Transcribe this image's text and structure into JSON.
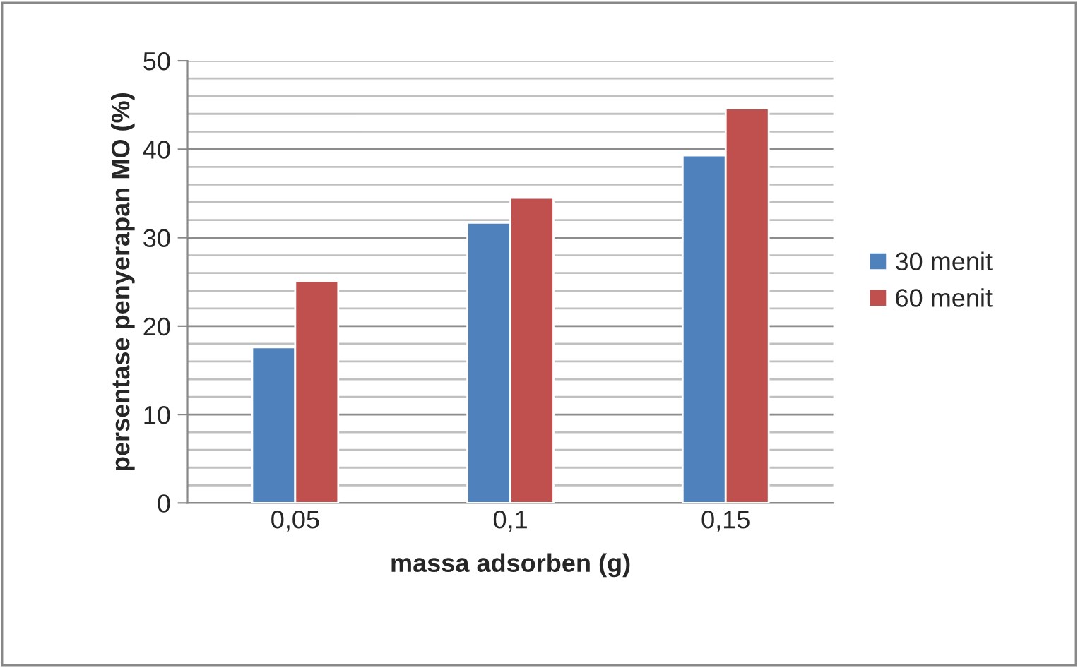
{
  "chart_data": {
    "type": "bar",
    "xlabel": "massa adsorben (g)",
    "ylabel": "persentase penyerapan MO (%)",
    "categories": [
      "0,05",
      "0,1",
      "0,15"
    ],
    "series": [
      {
        "name": "30 menit",
        "color": "#4f81bd",
        "values": [
          17.6,
          31.7,
          39.3
        ]
      },
      {
        "name": "60 menit",
        "color": "#c0504d",
        "values": [
          25.1,
          34.5,
          44.6
        ]
      }
    ],
    "ylim": [
      0,
      50
    ],
    "yticks": [
      0,
      10,
      20,
      30,
      40,
      50
    ],
    "grid": "y",
    "legend": "right"
  }
}
